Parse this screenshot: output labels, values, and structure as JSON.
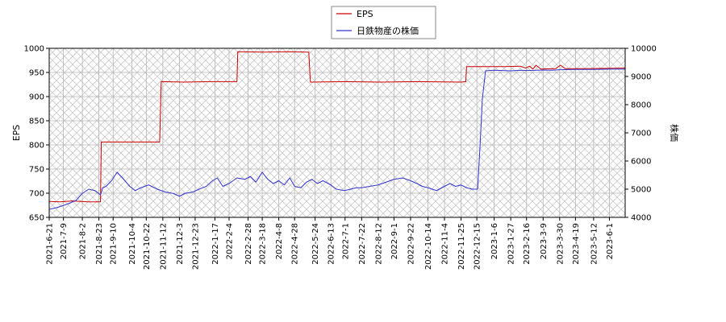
{
  "chart_data": {
    "type": "line",
    "legend": {
      "placement": "top-center",
      "entries": [
        {
          "label": "EPS",
          "color": "#cc0000"
        },
        {
          "label": "日鉄物産の株価",
          "color": "#3333cc"
        }
      ]
    },
    "left_axis": {
      "label": "EPS",
      "range": [
        650,
        1000
      ],
      "ticks": [
        650,
        700,
        750,
        800,
        850,
        900,
        950,
        1000
      ]
    },
    "right_axis": {
      "label": "株価",
      "range": [
        4000,
        10000
      ],
      "ticks": [
        4000,
        5000,
        6000,
        7000,
        8000,
        9000,
        10000
      ]
    },
    "x_axis": {
      "range": [
        "2021-06-21",
        "2023-06-21"
      ],
      "tick_labels": [
        "2021-6-21",
        "2021-7-9",
        "2021-8-2",
        "2021-8-23",
        "2021-9-10",
        "2021-10-4",
        "2021-10-22",
        "2021-11-12",
        "2021-12-3",
        "2021-12-23",
        "2022-1-17",
        "2022-2-4",
        "2022-2-28",
        "2022-3-18",
        "2022-4-8",
        "2022-4-28",
        "2022-5-24",
        "2022-6-13",
        "2022-7-1",
        "2022-7-22",
        "2022-8-12",
        "2022-9-1",
        "2022-9-22",
        "2022-10-14",
        "2022-11-4",
        "2022-11-25",
        "2022-12-15",
        "2023-1-6",
        "2023-1-27",
        "2023-2-16",
        "2023-3-9",
        "2023-3-30",
        "2023-4-19",
        "2023-5-12",
        "2023-6-1"
      ]
    },
    "grid": true,
    "series": [
      {
        "name": "EPS",
        "axis": "left",
        "color": "#cc0000",
        "points": [
          [
            "2021-06-21",
            683
          ],
          [
            "2021-07-05",
            682
          ],
          [
            "2021-07-20",
            684
          ],
          [
            "2021-08-10",
            682
          ],
          [
            "2021-08-25",
            682
          ],
          [
            "2021-08-26",
            806
          ],
          [
            "2021-11-08",
            806
          ],
          [
            "2021-11-10",
            931
          ],
          [
            "2021-12-10",
            930
          ],
          [
            "2022-01-10",
            931
          ],
          [
            "2022-02-14",
            931
          ],
          [
            "2022-02-15",
            993
          ],
          [
            "2022-03-20",
            992
          ],
          [
            "2022-04-20",
            993
          ],
          [
            "2022-05-16",
            992
          ],
          [
            "2022-05-18",
            930
          ],
          [
            "2022-07-01",
            931
          ],
          [
            "2022-08-15",
            930
          ],
          [
            "2022-10-01",
            931
          ],
          [
            "2022-11-25",
            930
          ],
          [
            "2022-12-01",
            931
          ],
          [
            "2022-12-02",
            962
          ],
          [
            "2023-01-20",
            962
          ],
          [
            "2023-02-08",
            963
          ],
          [
            "2023-02-15",
            959
          ],
          [
            "2023-02-20",
            963
          ],
          [
            "2023-02-24",
            957
          ],
          [
            "2023-02-28",
            965
          ],
          [
            "2023-03-06",
            957
          ],
          [
            "2023-03-25",
            958
          ],
          [
            "2023-03-31",
            965
          ],
          [
            "2023-04-06",
            958
          ],
          [
            "2023-05-01",
            958
          ],
          [
            "2023-06-21",
            959
          ]
        ]
      },
      {
        "name": "日鉄物産の株価",
        "axis": "right",
        "color": "#3333cc",
        "points": [
          [
            "2021-06-21",
            4280
          ],
          [
            "2021-07-01",
            4350
          ],
          [
            "2021-07-12",
            4450
          ],
          [
            "2021-07-25",
            4600
          ],
          [
            "2021-08-02",
            4850
          ],
          [
            "2021-08-10",
            5000
          ],
          [
            "2021-08-18",
            4950
          ],
          [
            "2021-08-25",
            4800
          ],
          [
            "2021-08-28",
            5050
          ],
          [
            "2021-09-01",
            5100
          ],
          [
            "2021-09-08",
            5300
          ],
          [
            "2021-09-15",
            5600
          ],
          [
            "2021-09-22",
            5400
          ],
          [
            "2021-10-01",
            5100
          ],
          [
            "2021-10-08",
            4950
          ],
          [
            "2021-10-15",
            5050
          ],
          [
            "2021-10-25",
            5150
          ],
          [
            "2021-11-05",
            5000
          ],
          [
            "2021-11-15",
            4900
          ],
          [
            "2021-11-25",
            4850
          ],
          [
            "2021-12-03",
            4750
          ],
          [
            "2021-12-10",
            4850
          ],
          [
            "2021-12-20",
            4900
          ],
          [
            "2021-12-28",
            5000
          ],
          [
            "2022-01-06",
            5100
          ],
          [
            "2022-01-14",
            5300
          ],
          [
            "2022-01-20",
            5400
          ],
          [
            "2022-01-27",
            5100
          ],
          [
            "2022-02-04",
            5200
          ],
          [
            "2022-02-14",
            5400
          ],
          [
            "2022-02-24",
            5350
          ],
          [
            "2022-03-03",
            5450
          ],
          [
            "2022-03-10",
            5250
          ],
          [
            "2022-03-18",
            5600
          ],
          [
            "2022-03-25",
            5350
          ],
          [
            "2022-04-01",
            5200
          ],
          [
            "2022-04-08",
            5300
          ],
          [
            "2022-04-15",
            5150
          ],
          [
            "2022-04-22",
            5400
          ],
          [
            "2022-04-28",
            5100
          ],
          [
            "2022-05-06",
            5050
          ],
          [
            "2022-05-13",
            5250
          ],
          [
            "2022-05-20",
            5350
          ],
          [
            "2022-05-27",
            5200
          ],
          [
            "2022-06-03",
            5300
          ],
          [
            "2022-06-13",
            5150
          ],
          [
            "2022-06-20",
            5000
          ],
          [
            "2022-06-30",
            4950
          ],
          [
            "2022-07-08",
            5000
          ],
          [
            "2022-07-15",
            5050
          ],
          [
            "2022-07-22",
            5050
          ],
          [
            "2022-08-01",
            5100
          ],
          [
            "2022-08-12",
            5150
          ],
          [
            "2022-08-22",
            5250
          ],
          [
            "2022-09-01",
            5350
          ],
          [
            "2022-09-12",
            5400
          ],
          [
            "2022-09-22",
            5300
          ],
          [
            "2022-09-30",
            5200
          ],
          [
            "2022-10-07",
            5100
          ],
          [
            "2022-10-14",
            5050
          ],
          [
            "2022-10-25",
            4950
          ],
          [
            "2022-11-04",
            5100
          ],
          [
            "2022-11-11",
            5200
          ],
          [
            "2022-11-18",
            5100
          ],
          [
            "2022-11-25",
            5150
          ],
          [
            "2022-12-02",
            5050
          ],
          [
            "2022-12-09",
            5000
          ],
          [
            "2022-12-16",
            5000
          ],
          [
            "2022-12-19",
            6500
          ],
          [
            "2022-12-22",
            8200
          ],
          [
            "2022-12-26",
            9200
          ],
          [
            "2023-01-06",
            9220
          ],
          [
            "2023-01-27",
            9200
          ],
          [
            "2023-02-10",
            9220
          ],
          [
            "2023-02-16",
            9210
          ],
          [
            "2023-03-01",
            9220
          ],
          [
            "2023-03-09",
            9230
          ],
          [
            "2023-03-20",
            9220
          ],
          [
            "2023-03-30",
            9240
          ],
          [
            "2023-04-19",
            9250
          ],
          [
            "2023-05-12",
            9250
          ],
          [
            "2023-06-01",
            9260
          ],
          [
            "2023-06-21",
            9260
          ]
        ]
      }
    ]
  }
}
